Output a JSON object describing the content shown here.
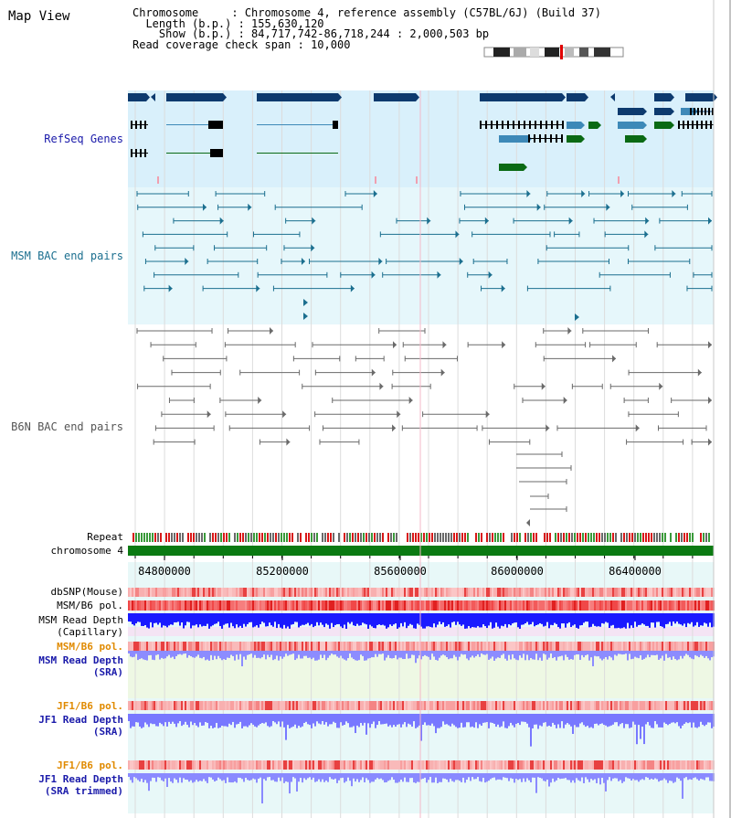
{
  "map_view": {
    "title": "Map View"
  },
  "header": {
    "chromosome": "Chromosome     : Chromosome 4, reference assembly (C57BL/6J) (Build 37)",
    "length": "  Length (b.p.) : 155,630,120",
    "show": "    Show (b.p.) : 84,717,742-86,718,244 : 2,000,503 bp",
    "span": "Read coverage check span : 10,000"
  },
  "tracks": {
    "refseq": "RefSeq Genes",
    "msm_bac": "MSM BAC end pairs",
    "b6n_bac": "B6N BAC end pairs",
    "repeat": "Repeat",
    "chromosome": "chromosome 4",
    "dbsnp": "dbSNP(Mouse)",
    "msm_b6_pol": "MSM/B6 pol.",
    "msm_depth_cap_1": "MSM Read Depth",
    "msm_depth_cap_2": "(Capillary)",
    "msm_b6_pol_2": "MSM/B6 pol.",
    "msm_depth_sra_1": "MSM Read Depth",
    "msm_depth_sra_2": "(SRA)",
    "jf1_b6_pol": "JF1/B6 pol.",
    "jf1_depth_sra_1": "JF1 Read Depth",
    "jf1_depth_sra_2": "(SRA)",
    "jf1_b6_pol_2": "JF1/B6 pol.",
    "jf1_depth_trim_1": "JF1 Read Depth",
    "jf1_depth_trim_2": "(SRA trimmed)"
  },
  "axis": {
    "ticks": [
      "84800000",
      "85200000",
      "85600000",
      "86000000",
      "86400000"
    ]
  },
  "colors": {
    "refseq_bg": "#d9f0fb",
    "msm_bg": "#e6f7fb",
    "gene_dark": "#0d3a6e",
    "gene_mid": "#3d89b8",
    "gene_green": "#0a6a14",
    "bac_msm": "#1b6f8f",
    "bac_b6n": "#6a6a6a",
    "chrom_bar": "#0b7a12",
    "depth_blue": "#1a1aff",
    "depth_light": "#7878ff",
    "pol_red": "#f05050",
    "label_blue": "#1a1aaa",
    "label_orange": "#e08a00"
  }
}
